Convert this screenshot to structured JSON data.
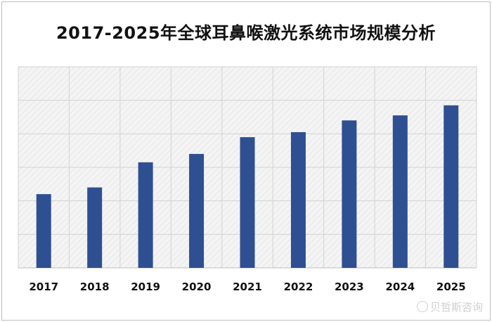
{
  "chart_data": {
    "type": "bar",
    "title": "2017-2025年全球耳鼻喉激光系统市场规模分析",
    "categories": [
      "2017",
      "2018",
      "2019",
      "2020",
      "2021",
      "2022",
      "2023",
      "2024",
      "2025"
    ],
    "values": [
      22,
      24,
      31.5,
      34,
      39,
      40.5,
      44,
      45.5,
      48.5
    ],
    "ylim": [
      0,
      60
    ],
    "grid": true,
    "legend": "none",
    "bar_color": "#2e4f91"
  },
  "watermark": {
    "text": "贝哲斯咨询",
    "icon": "weibo-icon"
  }
}
